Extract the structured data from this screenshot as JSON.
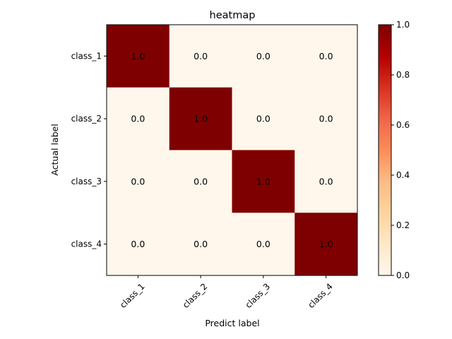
{
  "chart_data": {
    "type": "heatmap",
    "title": "heatmap",
    "xlabel": "Predict label",
    "ylabel": "Actual label",
    "x_categories": [
      "class_1",
      "class_2",
      "class_3",
      "class_4"
    ],
    "y_categories": [
      "class_1",
      "class_2",
      "class_3",
      "class_4"
    ],
    "values": [
      [
        1.0,
        0.0,
        0.0,
        0.0
      ],
      [
        0.0,
        1.0,
        0.0,
        0.0
      ],
      [
        0.0,
        0.0,
        1.0,
        0.0
      ],
      [
        0.0,
        0.0,
        0.0,
        1.0
      ]
    ],
    "value_format_decimals": 1,
    "colormap": "OrRd",
    "color_min": "#fff7ec",
    "color_max": "#7f0000",
    "colorbar": {
      "vmin": 0.0,
      "vmax": 1.0,
      "ticks": [
        0.0,
        0.2,
        0.4,
        0.6,
        0.8,
        1.0
      ],
      "tick_labels": [
        "0.0",
        "0.2",
        "0.4",
        "0.6",
        "0.8",
        "1.0"
      ]
    },
    "grid": false,
    "x_tick_rotation_deg": 45
  }
}
